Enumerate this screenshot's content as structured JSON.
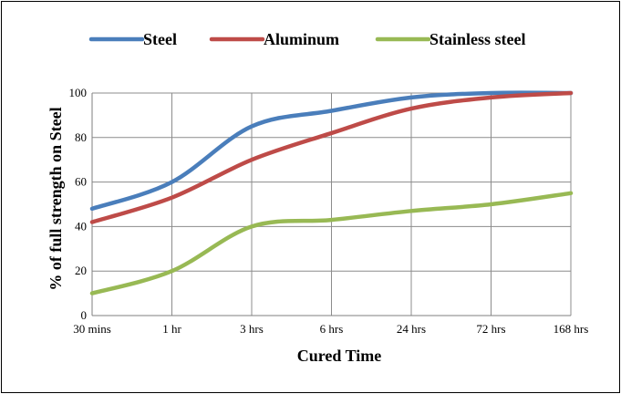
{
  "chart_data": {
    "type": "line",
    "title": "",
    "xlabel": "Cured Time",
    "ylabel": "% of full strength on Steel",
    "categories": [
      "30 mins",
      "1 hr",
      "3 hrs",
      "6 hrs",
      "24 hrs",
      "72 hrs",
      "168 hrs"
    ],
    "ylim": [
      0,
      100
    ],
    "yticks": [
      "0",
      "20",
      "40",
      "60",
      "80",
      "100"
    ],
    "grid": true,
    "legend_position": "top",
    "series": [
      {
        "name": "Steel",
        "color": "#4a7ebb",
        "values": [
          48,
          60,
          85,
          92,
          98,
          100,
          100
        ]
      },
      {
        "name": "Aluminum",
        "color": "#be4b48",
        "values": [
          42,
          53,
          70,
          82,
          93,
          98,
          100
        ]
      },
      {
        "name": "Stainless steel",
        "color": "#98b954",
        "values": [
          10,
          20,
          40,
          43,
          47,
          50,
          55
        ]
      }
    ]
  }
}
